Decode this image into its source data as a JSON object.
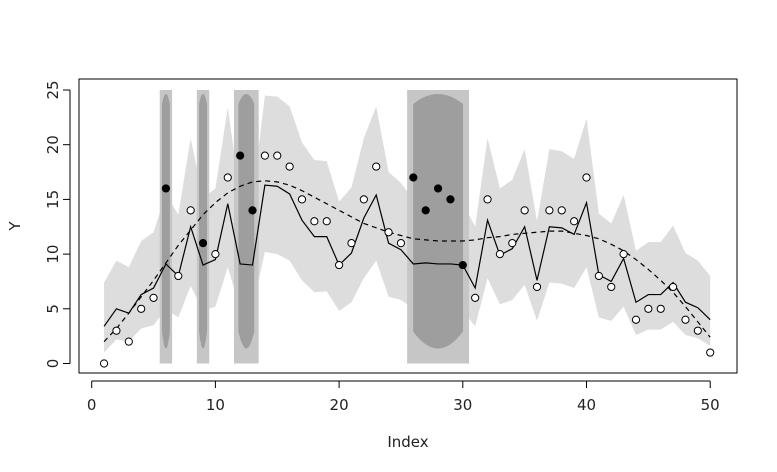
{
  "chart_data": {
    "type": "scatter",
    "title": "",
    "xlabel": "Index",
    "ylabel": "Y",
    "xlim": [
      1,
      50
    ],
    "ylim": [
      0,
      25
    ],
    "x_ticks": [
      0,
      10,
      20,
      30,
      40,
      50
    ],
    "y_ticks": [
      0,
      5,
      10,
      15,
      20,
      25
    ],
    "grid": false,
    "legend": "none",
    "colors": {
      "band": "#dddddd",
      "highlight_region": "#c6c6c6",
      "highlight_inner": "#9e9e9e",
      "line": "#000000",
      "points": "#000000"
    },
    "highlight_regions": [
      {
        "x_from": 5.5,
        "x_to": 6.5
      },
      {
        "x_from": 8.5,
        "x_to": 9.5
      },
      {
        "x_from": 11.5,
        "x_to": 13.5
      },
      {
        "x_from": 25.5,
        "x_to": 30.5
      }
    ],
    "points": [
      {
        "x": 1,
        "y": 0,
        "flagged": false
      },
      {
        "x": 2,
        "y": 3,
        "flagged": false
      },
      {
        "x": 3,
        "y": 2,
        "flagged": false
      },
      {
        "x": 4,
        "y": 5,
        "flagged": false
      },
      {
        "x": 5,
        "y": 6,
        "flagged": false
      },
      {
        "x": 6,
        "y": 16,
        "flagged": true
      },
      {
        "x": 7,
        "y": 8,
        "flagged": false
      },
      {
        "x": 8,
        "y": 14,
        "flagged": false
      },
      {
        "x": 9,
        "y": 11,
        "flagged": true
      },
      {
        "x": 10,
        "y": 10,
        "flagged": false
      },
      {
        "x": 11,
        "y": 17,
        "flagged": false
      },
      {
        "x": 12,
        "y": 19,
        "flagged": true
      },
      {
        "x": 13,
        "y": 14,
        "flagged": true
      },
      {
        "x": 14,
        "y": 19,
        "flagged": false
      },
      {
        "x": 15,
        "y": 19,
        "flagged": false
      },
      {
        "x": 16,
        "y": 18,
        "flagged": false
      },
      {
        "x": 17,
        "y": 15,
        "flagged": false
      },
      {
        "x": 18,
        "y": 13,
        "flagged": false
      },
      {
        "x": 19,
        "y": 13,
        "flagged": false
      },
      {
        "x": 20,
        "y": 9,
        "flagged": false
      },
      {
        "x": 21,
        "y": 11,
        "flagged": false
      },
      {
        "x": 22,
        "y": 15,
        "flagged": false
      },
      {
        "x": 23,
        "y": 18,
        "flagged": false
      },
      {
        "x": 24,
        "y": 12,
        "flagged": false
      },
      {
        "x": 25,
        "y": 11,
        "flagged": false
      },
      {
        "x": 26,
        "y": 17,
        "flagged": true
      },
      {
        "x": 27,
        "y": 14,
        "flagged": true
      },
      {
        "x": 28,
        "y": 16,
        "flagged": true
      },
      {
        "x": 29,
        "y": 15,
        "flagged": true
      },
      {
        "x": 30,
        "y": 9,
        "flagged": true
      },
      {
        "x": 31,
        "y": 6,
        "flagged": false
      },
      {
        "x": 32,
        "y": 15,
        "flagged": false
      },
      {
        "x": 33,
        "y": 10,
        "flagged": false
      },
      {
        "x": 34,
        "y": 11,
        "flagged": false
      },
      {
        "x": 35,
        "y": 14,
        "flagged": false
      },
      {
        "x": 36,
        "y": 7,
        "flagged": false
      },
      {
        "x": 37,
        "y": 14,
        "flagged": false
      },
      {
        "x": 38,
        "y": 14,
        "flagged": false
      },
      {
        "x": 39,
        "y": 13,
        "flagged": false
      },
      {
        "x": 40,
        "y": 17,
        "flagged": false
      },
      {
        "x": 41,
        "y": 8,
        "flagged": false
      },
      {
        "x": 42,
        "y": 7,
        "flagged": false
      },
      {
        "x": 43,
        "y": 10,
        "flagged": false
      },
      {
        "x": 44,
        "y": 4,
        "flagged": false
      },
      {
        "x": 45,
        "y": 5,
        "flagged": false
      },
      {
        "x": 46,
        "y": 5,
        "flagged": false
      },
      {
        "x": 47,
        "y": 7,
        "flagged": false
      },
      {
        "x": 48,
        "y": 4,
        "flagged": false
      },
      {
        "x": 49,
        "y": 3,
        "flagged": false
      },
      {
        "x": 50,
        "y": 1,
        "flagged": false
      }
    ],
    "fitted_line": [
      3.4,
      5.0,
      4.6,
      6.3,
      6.9,
      9.1,
      8.0,
      12.5,
      9.0,
      9.5,
      14.6,
      9.1,
      9.0,
      16.3,
      16.2,
      15.5,
      13.1,
      11.6,
      11.6,
      9.0,
      10.1,
      13.3,
      15.4,
      11.0,
      10.4,
      9.1,
      9.2,
      9.1,
      9.1,
      9.0,
      6.9,
      13.1,
      9.9,
      10.5,
      12.5,
      7.6,
      12.5,
      12.4,
      11.8,
      14.7,
      8.1,
      7.5,
      9.6,
      5.6,
      6.3,
      6.3,
      7.4,
      5.6,
      5.1,
      4.0
    ],
    "band_upper": [
      7.4,
      9.4,
      8.8,
      11.2,
      12.0,
      15.5,
      13.6,
      20.6,
      15.1,
      16.0,
      23.4,
      15.4,
      15.0,
      24.5,
      24.4,
      23.5,
      20.2,
      18.6,
      18.5,
      14.8,
      16.1,
      20.6,
      23.5,
      17.5,
      16.5,
      15.0,
      15.2,
      15.0,
      15.0,
      14.7,
      12.5,
      20.6,
      16.0,
      16.8,
      19.6,
      13.0,
      19.6,
      19.4,
      18.7,
      22.4,
      13.7,
      12.8,
      15.4,
      10.3,
      11.1,
      11.1,
      12.6,
      10.1,
      9.4,
      8.0
    ],
    "band_lower": [
      1.0,
      2.2,
      2.0,
      3.2,
      3.5,
      5.0,
      4.2,
      7.1,
      4.8,
      5.2,
      8.8,
      5.0,
      5.1,
      10.2,
      10.0,
      9.4,
      7.6,
      6.5,
      6.6,
      4.8,
      5.6,
      7.8,
      9.4,
      6.1,
      5.8,
      5.0,
      5.2,
      5.0,
      5.0,
      4.8,
      3.4,
      7.8,
      5.4,
      5.8,
      7.2,
      3.9,
      7.4,
      7.3,
      6.9,
      8.8,
      4.2,
      3.9,
      5.2,
      2.6,
      3.1,
      3.1,
      3.8,
      2.6,
      2.3,
      1.6
    ],
    "smooth_curve": [
      2.0,
      3.2,
      4.6,
      6.1,
      7.6,
      9.2,
      10.8,
      12.2,
      13.6,
      14.7,
      15.6,
      16.2,
      16.6,
      16.7,
      16.6,
      16.3,
      15.8,
      15.2,
      14.6,
      14.0,
      13.4,
      12.8,
      12.4,
      12.0,
      11.7,
      11.4,
      11.3,
      11.2,
      11.2,
      11.2,
      11.3,
      11.5,
      11.6,
      11.8,
      11.9,
      12.0,
      12.1,
      12.1,
      11.9,
      11.7,
      11.4,
      10.9,
      10.3,
      9.5,
      8.6,
      7.6,
      6.5,
      5.2,
      3.8,
      2.4
    ]
  }
}
